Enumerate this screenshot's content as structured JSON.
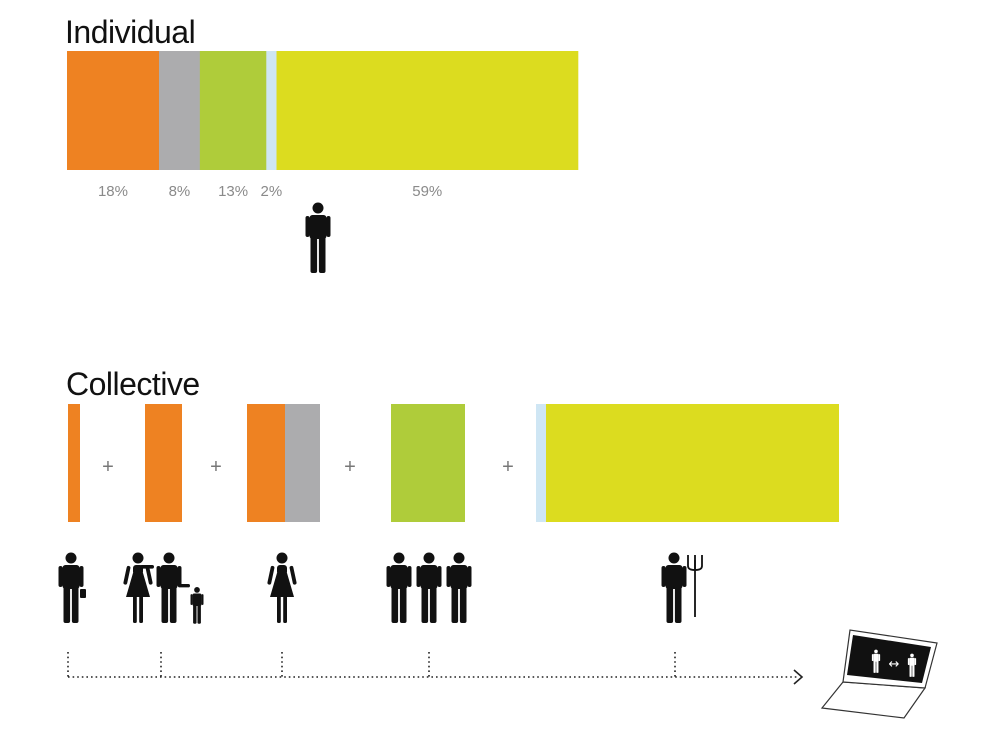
{
  "colors": {
    "orange": "#ee8222",
    "gray": "#acacae",
    "green": "#afcc3a",
    "lightblue": "#cfe6f4",
    "yellow": "#dcdc1f",
    "ink": "#111111"
  },
  "individual": {
    "title": "Individual",
    "segments": [
      {
        "label": "18%",
        "value": 18,
        "color": "orange"
      },
      {
        "label": "8%",
        "value": 8,
        "color": "gray"
      },
      {
        "label": "13%",
        "value": 13,
        "color": "green"
      },
      {
        "label": "2%",
        "value": 2,
        "color": "lightblue"
      },
      {
        "label": "59%",
        "value": 59,
        "color": "yellow"
      }
    ],
    "figure_icon": "man-icon"
  },
  "collective": {
    "title": "Collective",
    "operator": "+",
    "groups": [
      {
        "icon": "businessman-icon"
      },
      {
        "icon": "family-icon"
      },
      {
        "icon": "woman-icon"
      },
      {
        "icon": "group-of-three-icon"
      },
      {
        "icon": "farmer-with-pitchfork-icon"
      }
    ],
    "timeline_icon": "laptop-icon",
    "screen_icon": "people-exchange-icon",
    "screen_arrow": "↔"
  }
}
